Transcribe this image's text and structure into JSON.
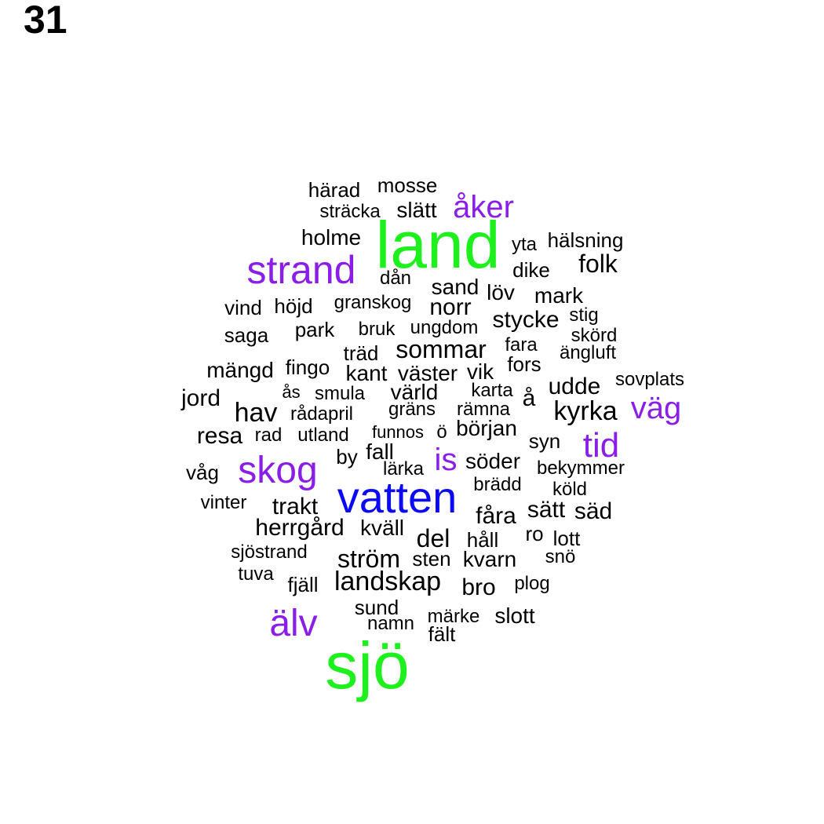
{
  "panel_number": "31",
  "colors": {
    "black": "#000000",
    "purple": "#8b1ee6",
    "green": "#1ef01e",
    "blue": "#0a0af5"
  },
  "words": [
    {
      "text": "land",
      "size": "xl",
      "color": "green"
    },
    {
      "text": "sjö",
      "size": "xl",
      "color": "green"
    },
    {
      "text": "vatten",
      "size": "l",
      "color": "blue"
    },
    {
      "text": "strand",
      "size": "m",
      "color": "purple"
    },
    {
      "text": "skog",
      "size": "m",
      "color": "purple"
    },
    {
      "text": "älv",
      "size": "m",
      "color": "purple"
    },
    {
      "text": "åker",
      "size": "s",
      "color": "purple"
    },
    {
      "text": "väg",
      "size": "s",
      "color": "purple"
    },
    {
      "text": "tid",
      "size": "s",
      "color": "purple"
    },
    {
      "text": "is",
      "size": "s",
      "color": "purple"
    },
    {
      "text": "härad",
      "size": "xs",
      "color": "black"
    },
    {
      "text": "mosse",
      "size": "xs",
      "color": "black"
    },
    {
      "text": "sträcka",
      "size": "xs",
      "color": "black"
    },
    {
      "text": "slätt",
      "size": "xs",
      "color": "black"
    },
    {
      "text": "holme",
      "size": "xs",
      "color": "black"
    },
    {
      "text": "yta",
      "size": "xs",
      "color": "black"
    },
    {
      "text": "hälsning",
      "size": "xs",
      "color": "black"
    },
    {
      "text": "folk",
      "size": "xs",
      "color": "black"
    },
    {
      "text": "dike",
      "size": "xs",
      "color": "black"
    },
    {
      "text": "dån",
      "size": "xs",
      "color": "black"
    },
    {
      "text": "sand",
      "size": "xs",
      "color": "black"
    },
    {
      "text": "löv",
      "size": "xs",
      "color": "black"
    },
    {
      "text": "mark",
      "size": "xs",
      "color": "black"
    },
    {
      "text": "vind",
      "size": "xs",
      "color": "black"
    },
    {
      "text": "höjd",
      "size": "xs",
      "color": "black"
    },
    {
      "text": "granskog",
      "size": "xs",
      "color": "black"
    },
    {
      "text": "norr",
      "size": "xs",
      "color": "black"
    },
    {
      "text": "stig",
      "size": "xs",
      "color": "black"
    },
    {
      "text": "stycke",
      "size": "xs",
      "color": "black"
    },
    {
      "text": "saga",
      "size": "xs",
      "color": "black"
    },
    {
      "text": "park",
      "size": "xs",
      "color": "black"
    },
    {
      "text": "bruk",
      "size": "xs",
      "color": "black"
    },
    {
      "text": "ungdom",
      "size": "xs",
      "color": "black"
    },
    {
      "text": "skörd",
      "size": "xs",
      "color": "black"
    },
    {
      "text": "träd",
      "size": "xs",
      "color": "black"
    },
    {
      "text": "sommar",
      "size": "xs",
      "color": "black"
    },
    {
      "text": "fara",
      "size": "xs",
      "color": "black"
    },
    {
      "text": "ängluft",
      "size": "xs",
      "color": "black"
    },
    {
      "text": "mängd",
      "size": "xs",
      "color": "black"
    },
    {
      "text": "fingo",
      "size": "xs",
      "color": "black"
    },
    {
      "text": "kant",
      "size": "xs",
      "color": "black"
    },
    {
      "text": "väster",
      "size": "xs",
      "color": "black"
    },
    {
      "text": "vik",
      "size": "xs",
      "color": "black"
    },
    {
      "text": "fors",
      "size": "xs",
      "color": "black"
    },
    {
      "text": "sovplats",
      "size": "xs",
      "color": "black"
    },
    {
      "text": "jord",
      "size": "xs",
      "color": "black"
    },
    {
      "text": "ås",
      "size": "xs",
      "color": "black"
    },
    {
      "text": "smula",
      "size": "xs",
      "color": "black"
    },
    {
      "text": "värld",
      "size": "xs",
      "color": "black"
    },
    {
      "text": "karta",
      "size": "xs",
      "color": "black"
    },
    {
      "text": "å",
      "size": "xs",
      "color": "black"
    },
    {
      "text": "udde",
      "size": "xs",
      "color": "black"
    },
    {
      "text": "hav",
      "size": "xs",
      "color": "black"
    },
    {
      "text": "rådapril",
      "size": "xs",
      "color": "black"
    },
    {
      "text": "gräns",
      "size": "xs",
      "color": "black"
    },
    {
      "text": "rämna",
      "size": "xs",
      "color": "black"
    },
    {
      "text": "kyrka",
      "size": "xs",
      "color": "black"
    },
    {
      "text": "resa",
      "size": "xs",
      "color": "black"
    },
    {
      "text": "rad",
      "size": "xs",
      "color": "black"
    },
    {
      "text": "utland",
      "size": "xs",
      "color": "black"
    },
    {
      "text": "funnos",
      "size": "xs",
      "color": "black"
    },
    {
      "text": "ö",
      "size": "xs",
      "color": "black"
    },
    {
      "text": "början",
      "size": "xs",
      "color": "black"
    },
    {
      "text": "syn",
      "size": "xs",
      "color": "black"
    },
    {
      "text": "by",
      "size": "xs",
      "color": "black"
    },
    {
      "text": "fall",
      "size": "xs",
      "color": "black"
    },
    {
      "text": "söder",
      "size": "xs",
      "color": "black"
    },
    {
      "text": "våg",
      "size": "xs",
      "color": "black"
    },
    {
      "text": "lärka",
      "size": "xs",
      "color": "black"
    },
    {
      "text": "bekymmer",
      "size": "xs",
      "color": "black"
    },
    {
      "text": "brädd",
      "size": "xs",
      "color": "black"
    },
    {
      "text": "köld",
      "size": "xs",
      "color": "black"
    },
    {
      "text": "vinter",
      "size": "xs",
      "color": "black"
    },
    {
      "text": "trakt",
      "size": "xs",
      "color": "black"
    },
    {
      "text": "fåra",
      "size": "xs",
      "color": "black"
    },
    {
      "text": "sätt",
      "size": "xs",
      "color": "black"
    },
    {
      "text": "säd",
      "size": "xs",
      "color": "black"
    },
    {
      "text": "herrgård",
      "size": "xs",
      "color": "black"
    },
    {
      "text": "kväll",
      "size": "xs",
      "color": "black"
    },
    {
      "text": "del",
      "size": "xs",
      "color": "black"
    },
    {
      "text": "håll",
      "size": "xs",
      "color": "black"
    },
    {
      "text": "ro",
      "size": "xs",
      "color": "black"
    },
    {
      "text": "lott",
      "size": "xs",
      "color": "black"
    },
    {
      "text": "sjöstrand",
      "size": "xs",
      "color": "black"
    },
    {
      "text": "ström",
      "size": "xs",
      "color": "black"
    },
    {
      "text": "sten",
      "size": "xs",
      "color": "black"
    },
    {
      "text": "kvarn",
      "size": "xs",
      "color": "black"
    },
    {
      "text": "snö",
      "size": "xs",
      "color": "black"
    },
    {
      "text": "tuva",
      "size": "xs",
      "color": "black"
    },
    {
      "text": "fjäll",
      "size": "xs",
      "color": "black"
    },
    {
      "text": "landskap",
      "size": "xs",
      "color": "black"
    },
    {
      "text": "bro",
      "size": "xs",
      "color": "black"
    },
    {
      "text": "plog",
      "size": "xs",
      "color": "black"
    },
    {
      "text": "sund",
      "size": "xs",
      "color": "black"
    },
    {
      "text": "namn",
      "size": "xs",
      "color": "black"
    },
    {
      "text": "märke",
      "size": "xs",
      "color": "black"
    },
    {
      "text": "slott",
      "size": "xs",
      "color": "black"
    },
    {
      "text": "fält",
      "size": "xs",
      "color": "black"
    }
  ]
}
